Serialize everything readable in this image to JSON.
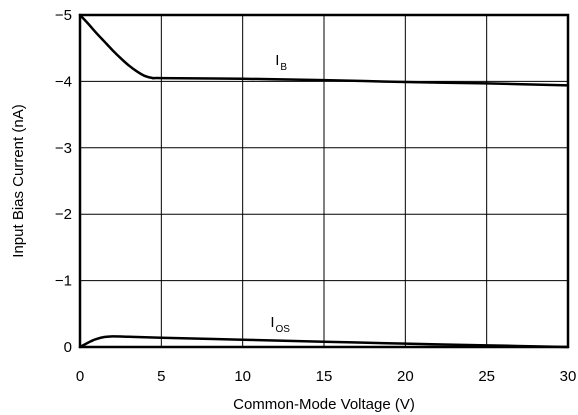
{
  "chart_data": {
    "type": "line",
    "title": "",
    "xlabel": "Common-Mode Voltage (V)",
    "ylabel": "Input Bias Current (nA)",
    "xlim": [
      0,
      30
    ],
    "ylim": [
      0,
      -5
    ],
    "xticks": [
      0,
      5,
      10,
      15,
      20,
      25,
      30
    ],
    "yticks": [
      0,
      -1,
      -2,
      -3,
      -4,
      -5
    ],
    "xtick_labels": [
      "0",
      "5",
      "10",
      "15",
      "20",
      "25",
      "30"
    ],
    "ytick_labels": [
      "0",
      "−1",
      "−2",
      "−3",
      "−4",
      "−5"
    ],
    "grid": true,
    "legend": "none",
    "series": [
      {
        "name": "I_B",
        "label_main": "I",
        "label_sub": "B",
        "label_at": [
          12,
          -4.25
        ],
        "x": [
          0,
          0.5,
          1,
          1.5,
          2,
          2.5,
          3,
          3.5,
          4,
          4.5,
          5,
          10,
          15,
          20,
          25,
          30
        ],
        "y": [
          -5.0,
          -4.87,
          -4.73,
          -4.6,
          -4.47,
          -4.35,
          -4.24,
          -4.15,
          -4.08,
          -4.05,
          -4.05,
          -4.04,
          -4.02,
          -3.99,
          -3.97,
          -3.94
        ]
      },
      {
        "name": "I_OS",
        "label_main": "I",
        "label_sub": "OS",
        "label_at": [
          11.7,
          -0.3
        ],
        "x": [
          0,
          0.3,
          0.7,
          1,
          1.5,
          2,
          3,
          5,
          10,
          15,
          20,
          25,
          30
        ],
        "y": [
          0,
          -0.04,
          -0.09,
          -0.12,
          -0.15,
          -0.16,
          -0.155,
          -0.14,
          -0.11,
          -0.08,
          -0.05,
          -0.025,
          0
        ]
      }
    ]
  }
}
